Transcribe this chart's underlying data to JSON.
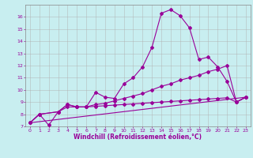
{
  "xlabel": "Windchill (Refroidissement éolien,°C)",
  "ylabel": "",
  "bg_color": "#c8eef0",
  "grid_color": "#b0b0b0",
  "line_color": "#990099",
  "xlim": [
    -0.5,
    23.5
  ],
  "ylim": [
    7,
    17
  ],
  "xticks": [
    0,
    1,
    2,
    3,
    4,
    5,
    6,
    7,
    8,
    9,
    10,
    11,
    12,
    13,
    14,
    15,
    16,
    17,
    18,
    19,
    20,
    21,
    22,
    23
  ],
  "yticks": [
    7,
    8,
    9,
    10,
    11,
    12,
    13,
    14,
    15,
    16
  ],
  "line1_x": [
    0,
    1,
    2,
    3,
    4,
    5,
    6,
    7,
    8,
    9,
    10,
    11,
    12,
    13,
    14,
    15,
    16,
    17,
    18,
    19,
    20,
    21,
    22,
    23
  ],
  "line1_y": [
    7.3,
    8.0,
    7.1,
    8.2,
    8.8,
    8.6,
    8.6,
    9.8,
    9.4,
    9.3,
    10.5,
    11.0,
    11.9,
    13.5,
    16.3,
    16.6,
    16.1,
    15.1,
    12.5,
    12.7,
    11.9,
    10.7,
    9.0,
    9.4
  ],
  "line2_x": [
    0,
    1,
    3,
    4,
    5,
    6,
    7,
    8,
    9,
    10,
    11,
    12,
    13,
    14,
    15,
    16,
    17,
    18,
    19,
    20,
    21,
    22,
    23
  ],
  "line2_y": [
    7.3,
    8.0,
    8.2,
    8.8,
    8.6,
    8.6,
    8.8,
    8.9,
    9.1,
    9.3,
    9.5,
    9.7,
    10.0,
    10.3,
    10.5,
    10.8,
    11.0,
    11.2,
    11.5,
    11.7,
    12.0,
    9.0,
    9.4
  ],
  "line3_x": [
    0,
    23
  ],
  "line3_y": [
    7.3,
    9.4
  ],
  "line4_x": [
    0,
    1,
    3,
    4,
    5,
    6,
    7,
    8,
    9,
    10,
    11,
    12,
    13,
    14,
    15,
    16,
    17,
    18,
    19,
    20,
    21,
    22,
    23
  ],
  "line4_y": [
    7.3,
    8.0,
    8.2,
    8.6,
    8.6,
    8.6,
    8.65,
    8.7,
    8.75,
    8.8,
    8.85,
    8.9,
    8.95,
    9.0,
    9.05,
    9.1,
    9.15,
    9.2,
    9.25,
    9.3,
    9.35,
    9.0,
    9.4
  ],
  "marker": "D",
  "markersize": 2.0,
  "linewidth": 0.8,
  "tick_fontsize": 4.5,
  "label_fontsize": 5.5
}
